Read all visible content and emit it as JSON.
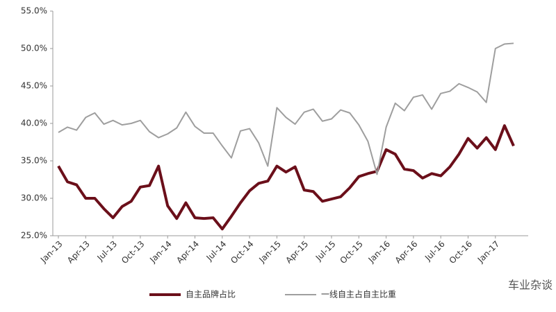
{
  "chart_data": {
    "type": "line",
    "categories": [
      "Jan-13",
      null,
      null,
      "Apr-13",
      null,
      null,
      "Jul-13",
      null,
      null,
      "Oct-13",
      null,
      null,
      "Jan-14",
      null,
      null,
      "Apr-14",
      null,
      null,
      "Jul-14",
      null,
      null,
      "Oct-14",
      null,
      null,
      "Jan-15",
      null,
      null,
      "Apr-15",
      null,
      null,
      "Jul-15",
      null,
      null,
      "Oct-15",
      null,
      null,
      "Jan-16",
      null,
      null,
      "Apr-16",
      null,
      null,
      "Jul-16",
      null,
      null,
      "Oct-16",
      null,
      null,
      "Jan-17",
      null,
      null
    ],
    "series": [
      {
        "name": "自主品牌占比",
        "color": "#6b0f1a",
        "values": [
          34.3,
          32.2,
          31.8,
          30.0,
          30.0,
          28.6,
          27.4,
          28.9,
          29.6,
          31.5,
          31.7,
          34.3,
          29.0,
          27.3,
          29.4,
          27.4,
          27.3,
          27.4,
          25.9,
          27.6,
          29.4,
          31.0,
          32.0,
          32.3,
          34.3,
          33.5,
          34.2,
          31.1,
          30.9,
          29.6,
          29.9,
          30.2,
          31.4,
          32.9,
          33.3,
          33.6,
          36.5,
          35.9,
          33.9,
          33.7,
          32.7,
          33.3,
          33.0,
          34.2,
          35.9,
          38.0,
          36.7,
          38.1,
          36.5,
          39.7,
          37.0
        ]
      },
      {
        "name": "一线自主占自主比重",
        "color": "#9e9e9e",
        "values": [
          38.8,
          39.5,
          39.1,
          40.8,
          41.4,
          39.9,
          40.4,
          39.8,
          40.0,
          40.4,
          38.9,
          38.1,
          38.6,
          39.4,
          41.5,
          39.6,
          38.7,
          38.7,
          37.0,
          35.4,
          39.0,
          39.3,
          37.4,
          34.3,
          42.1,
          40.8,
          39.9,
          41.5,
          41.9,
          40.3,
          40.6,
          41.8,
          41.4,
          39.8,
          37.6,
          33.2,
          39.5,
          42.7,
          41.7,
          43.5,
          43.8,
          41.9,
          44.0,
          44.3,
          45.3,
          44.8,
          44.2,
          42.8,
          50.0,
          50.6,
          50.7
        ]
      }
    ],
    "ylim": [
      25,
      55
    ],
    "yticks": [
      {
        "value": 25,
        "label": "25.0%"
      },
      {
        "value": 30,
        "label": "30.0%"
      },
      {
        "value": 35,
        "label": "35.0%"
      },
      {
        "value": 40,
        "label": "40.0%"
      },
      {
        "value": 45,
        "label": "45.0%"
      },
      {
        "value": 50,
        "label": "50.0%"
      },
      {
        "value": 55,
        "label": "55.0%"
      }
    ],
    "grid": false,
    "legend": "bottom",
    "watermark": "车业杂谈"
  }
}
